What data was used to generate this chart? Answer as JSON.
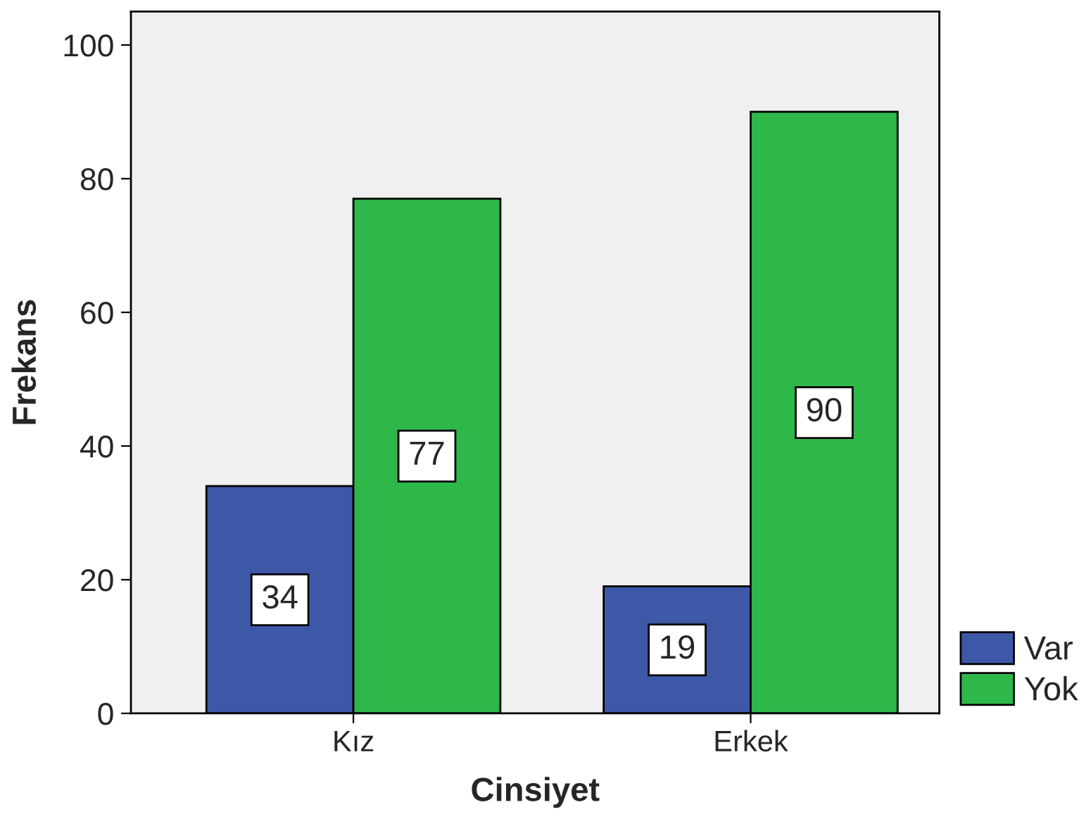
{
  "chart_data": {
    "type": "bar",
    "xlabel": "Cinsiyet",
    "ylabel": "Frekans",
    "categories": [
      "Kız",
      "Erkek"
    ],
    "series": [
      {
        "name": "Var",
        "color": "#3e58a8",
        "values": [
          34,
          19
        ]
      },
      {
        "name": "Yok",
        "color": "#2eb84a",
        "values": [
          77,
          90
        ]
      }
    ],
    "ylim": [
      0,
      105
    ],
    "yticks": [
      0,
      20,
      40,
      60,
      80,
      100
    ],
    "grid": false,
    "legend": "bottom right",
    "data_labels": true
  }
}
